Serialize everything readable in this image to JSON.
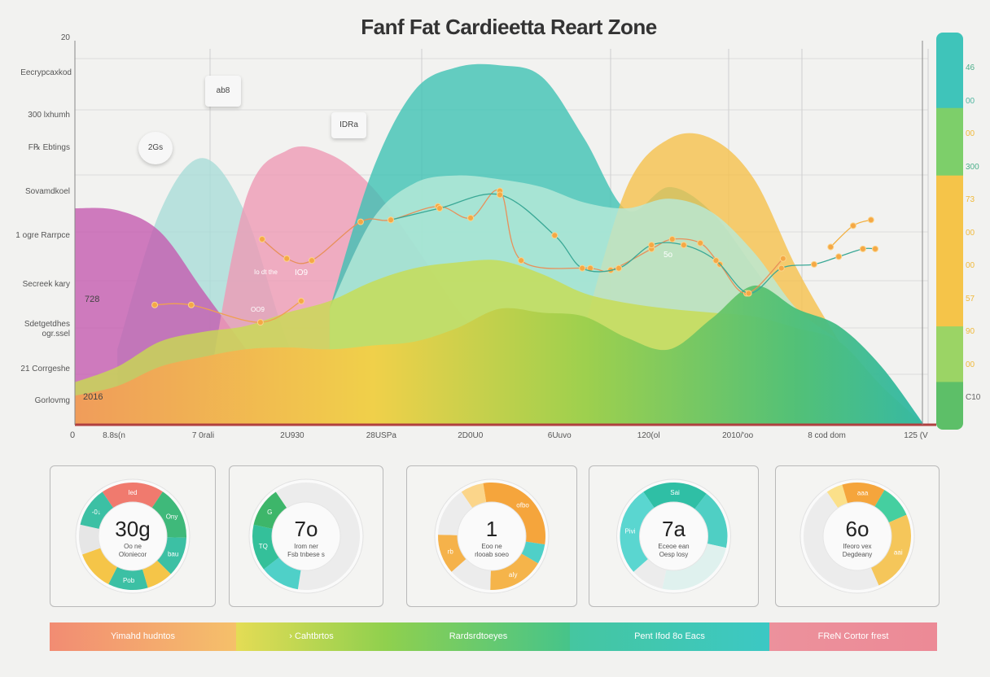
{
  "chart_data": {
    "type": "area",
    "title": "Fanf Fat Cardieetta Reart Zone",
    "ylim": [
      0,
      20
    ],
    "y_top_label": "20",
    "origin_label": "0",
    "y_category_labels": [
      "Eecrypcaxkod",
      "300 lxhumh",
      "F℞ Ebtings",
      "Sovamdkoel",
      "1 ogre Rarrpce",
      "Secreek kary",
      "Sdetgetdhes ogr.ssel",
      "21 Corrgeshe",
      "Gorlovmg"
    ],
    "x_tick_labels": [
      "8.8s(n",
      "7 0rali",
      "2U930",
      "28USPa",
      "2D0U0",
      "6Uuvo",
      "120(ol",
      "2010/'oo",
      "8 cod dom",
      "125 (V"
    ],
    "xlim": [
      0,
      20
    ],
    "grid": true,
    "area_series": [
      {
        "color": "#a9dcd8",
        "values": [
          null,
          3.9,
          11,
          13.8,
          11,
          4.3,
          0,
          null,
          null,
          null,
          null,
          null,
          null,
          null,
          null,
          null,
          null,
          null,
          null,
          null,
          null
        ]
      },
      {
        "color": "#c45bb0",
        "values": [
          11.2,
          11.1,
          10,
          7,
          4,
          1,
          null,
          null,
          null,
          null,
          null,
          null,
          null,
          null,
          null,
          null,
          null,
          null,
          null,
          null,
          null
        ]
      },
      {
        "color": "#ee9ab5",
        "values": [
          null,
          null,
          null,
          0,
          11.5,
          14.2,
          14,
          12.3,
          9.3,
          6,
          3.4,
          0,
          null,
          null,
          null,
          null,
          null,
          null,
          null,
          null,
          null
        ]
      },
      {
        "color": "#3fc2b4",
        "values": [
          null,
          null,
          null,
          null,
          null,
          null,
          6,
          13.1,
          17.3,
          18.5,
          18.6,
          18,
          14.8,
          11.1,
          12.3,
          11,
          8.1,
          5.1,
          3.5,
          1.8,
          0
        ]
      },
      {
        "color": "#f5c04c",
        "values": [
          null,
          null,
          null,
          null,
          null,
          null,
          null,
          null,
          null,
          null,
          null,
          null,
          5,
          12.3,
          14.8,
          14.8,
          12.7,
          8.1,
          4.3,
          0.9,
          0
        ]
      },
      {
        "color": "#b8ead8",
        "values": [
          null,
          null,
          null,
          null,
          null,
          null,
          6,
          10.6,
          12.5,
          12.9,
          12.7,
          12.3,
          11.5,
          11.2,
          11.7,
          11,
          8.9,
          6,
          4.3,
          2,
          0
        ]
      },
      {
        "color": "#c8dc50",
        "values": [
          2.2,
          3,
          4.3,
          4.8,
          5.1,
          5.8,
          6.4,
          7.4,
          8.1,
          8.4,
          8.5,
          7.8,
          6.8,
          6.3,
          6,
          5.8,
          5.6,
          5,
          4.3,
          2,
          0
        ]
      },
      {
        "color": "#6cc46e",
        "values": [
          1.5,
          2,
          3,
          3.5,
          3.9,
          4,
          3.9,
          4.1,
          4.3,
          5,
          6,
          5.8,
          5.6,
          4.5,
          3.9,
          5.5,
          7.2,
          6,
          5.1,
          3,
          0
        ]
      }
    ],
    "line_series": [
      {
        "color": "#f0a050",
        "points": [
          [
            1.88,
            6.2
          ],
          [
            2.74,
            6.2
          ],
          [
            4.37,
            5.3
          ],
          [
            5.33,
            6.4
          ]
        ]
      },
      {
        "color": "#e8905a",
        "points": [
          [
            4.41,
            9.6
          ],
          [
            4.99,
            8.6
          ],
          [
            5.58,
            8.5
          ],
          [
            6.73,
            10.5
          ],
          [
            7.44,
            10.6
          ],
          [
            8.55,
            11.3
          ],
          [
            9.32,
            10.7
          ],
          [
            10.01,
            12.1
          ],
          [
            10.51,
            8.5
          ],
          [
            12.14,
            8.1
          ],
          [
            12.62,
            8.0
          ],
          [
            13.58,
            9.1
          ],
          [
            14.07,
            9.6
          ],
          [
            14.73,
            9.4
          ],
          [
            15.19,
            8.3
          ],
          [
            15.82,
            6.8
          ],
          [
            16.68,
            8.6
          ]
        ]
      },
      {
        "color": "#3aa896",
        "points": [
          [
            7.44,
            10.6
          ],
          [
            8.59,
            11.2
          ],
          [
            10.01,
            11.9
          ],
          [
            11.3,
            9.8
          ],
          [
            11.95,
            8.1
          ],
          [
            12.81,
            8.1
          ],
          [
            13.58,
            9.3
          ],
          [
            14.34,
            9.3
          ],
          [
            15.1,
            8.5
          ],
          [
            15.87,
            6.8
          ],
          [
            16.64,
            8.1
          ],
          [
            17.41,
            8.3
          ],
          [
            17.99,
            8.7
          ],
          [
            18.56,
            9.1
          ],
          [
            18.85,
            9.1
          ]
        ]
      },
      {
        "color": "#f2b040",
        "points": [
          [
            17.8,
            9.2
          ],
          [
            18.33,
            10.3
          ],
          [
            18.75,
            10.6
          ]
        ]
      }
    ],
    "annotations": {
      "c1": "2Gs",
      "c2": "ab8",
      "c3": "IDRa",
      "a1": "Io  dt the",
      "a2": "IO9",
      "a3": "OO9",
      "a4": "5o",
      "left1": "728",
      "left2": "2016"
    },
    "right_scale": {
      "segments": [
        {
          "color": "#3fc4ba",
          "frac": 0.19
        },
        {
          "color": "#7dcf6a",
          "frac": 0.17
        },
        {
          "color": "#f5c449",
          "frac": 0.38
        },
        {
          "color": "#9bd465",
          "frac": 0.14
        },
        {
          "color": "#5dbf68",
          "frac": 0.12
        }
      ],
      "labels": [
        {
          "text": "46",
          "color": "#4caf8a"
        },
        {
          "text": "00",
          "color": "#4fb5a0"
        },
        {
          "text": "00",
          "color": "#f0b93a"
        },
        {
          "text": "300",
          "color": "#4caf8a"
        },
        {
          "text": "73",
          "color": "#f0b93a"
        },
        {
          "text": "00",
          "color": "#f0b93a"
        },
        {
          "text": "00",
          "color": "#f0b93a"
        },
        {
          "text": "57",
          "color": "#f0b93a"
        },
        {
          "text": "90",
          "color": "#f0b93a"
        },
        {
          "text": "00",
          "color": "#f0b93a"
        },
        {
          "text": "C10",
          "color": "#666666"
        }
      ]
    }
  },
  "donuts": [
    {
      "value": "30g",
      "sub1": "Oo ne",
      "sub2": "Oloniecor",
      "segments": [
        {
          "color": "#f07a6e",
          "frac": 0.19,
          "label": "Ied"
        },
        {
          "color": "#3fb97a",
          "frac": 0.16,
          "label": "Ony"
        },
        {
          "color": "#3cc0a4",
          "frac": 0.12,
          "label": "bau"
        },
        {
          "color": "#f5c548",
          "frac": 0.08,
          "label": ""
        },
        {
          "color": "#3cc0a4",
          "frac": 0.12,
          "label": "Pob"
        },
        {
          "color": "#f5c548",
          "frac": 0.12,
          "label": ""
        },
        {
          "color": "#e6e6e6",
          "frac": 0.09,
          "label": ""
        },
        {
          "color": "#3cc0a4",
          "frac": 0.12,
          "label": "-0↓"
        }
      ]
    },
    {
      "value": "7o",
      "sub1": "Irom ner",
      "sub2": "Fsb tnbese s",
      "segments": [
        {
          "color": "#ececec",
          "frac": 0.62,
          "label": ""
        },
        {
          "color": "#4fd0c8",
          "frac": 0.12,
          "label": ""
        },
        {
          "color": "#34c09a",
          "frac": 0.14,
          "label": "TQ"
        },
        {
          "color": "#3db66a",
          "frac": 0.12,
          "label": "G"
        }
      ]
    },
    {
      "value": "1",
      "sub1": "Eoo ne",
      "sub2": "rlooab soeo",
      "segments": [
        {
          "color": "#fbd58a",
          "frac": 0.07,
          "label": ""
        },
        {
          "color": "#f5a53c",
          "frac": 0.3,
          "label": "ofbo"
        },
        {
          "color": "#4fd0c8",
          "frac": 0.06,
          "label": ""
        },
        {
          "color": "#f5b44a",
          "frac": 0.17,
          "label": "aIy"
        },
        {
          "color": "#ececec",
          "frac": 0.13,
          "label": ""
        },
        {
          "color": "#f5b24a",
          "frac": 0.12,
          "label": "rb"
        },
        {
          "color": "#ececec",
          "frac": 0.15,
          "label": ""
        }
      ]
    },
    {
      "value": "7a",
      "sub1": "Eceoe ean",
      "sub2": "Oesp losy",
      "segments": [
        {
          "color": "#2fbfa5",
          "frac": 0.2,
          "label": "Sai"
        },
        {
          "color": "#4fcfc4",
          "frac": 0.18,
          "label": ""
        },
        {
          "color": "#dff1ee",
          "frac": 0.25,
          "label": ""
        },
        {
          "color": "#ececec",
          "frac": 0.1,
          "label": ""
        },
        {
          "color": "#5ad6d0",
          "frac": 0.27,
          "label": "Pivi"
        }
      ]
    },
    {
      "value": "6o",
      "sub1": "Ifeoro vex",
      "sub2": "Degdeany",
      "segments": [
        {
          "color": "#fbe08a",
          "frac": 0.05,
          "label": ""
        },
        {
          "color": "#f5a53c",
          "frac": 0.13,
          "label": "aaa"
        },
        {
          "color": "#45cfa0",
          "frac": 0.1,
          "label": ""
        },
        {
          "color": "#f5c65a",
          "frac": 0.25,
          "label": "aai"
        },
        {
          "color": "#ececec",
          "frac": 0.47,
          "label": ""
        }
      ]
    }
  ],
  "legend": [
    {
      "label": "Yimahd hudntos",
      "from": "#f28c73",
      "to": "#f5c06a"
    },
    {
      "label": "› Cahtbrtos",
      "from": "#e4dc55",
      "to": "#8fd04e"
    },
    {
      "label": "Rardsrdtoeyes",
      "from": "#8fd04e",
      "to": "#46c48a"
    },
    {
      "label": "Pent Ifod 8o Eacs",
      "from": "#45c6a0",
      "to": "#3cc8c4"
    },
    {
      "label": "FReN Cortor frest",
      "from": "#ec919c",
      "to": "#ec8a96"
    }
  ]
}
